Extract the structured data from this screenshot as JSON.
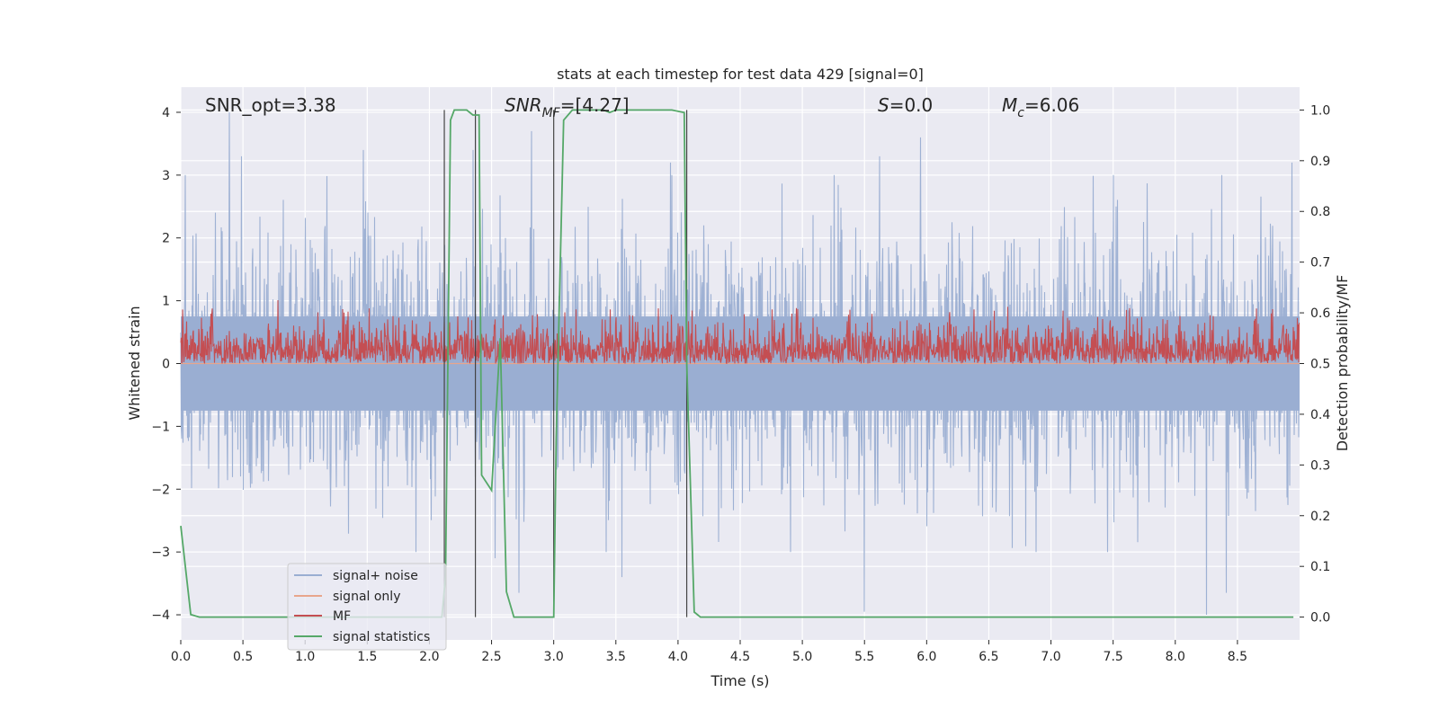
{
  "chart_data": {
    "type": "line",
    "title": "stats at each timestep for test data 429 [signal=0]",
    "xlabel": "Time (s)",
    "ylabel": "Whitened strain",
    "y2label": "Detection probability/MF",
    "xlim": [
      0.0,
      9.0
    ],
    "ylim": [
      -4.4,
      4.4
    ],
    "y2lim": [
      -0.045,
      1.045
    ],
    "xticks": [
      0.0,
      0.5,
      1.0,
      1.5,
      2.0,
      2.5,
      3.0,
      3.5,
      4.0,
      4.5,
      5.0,
      5.5,
      6.0,
      6.5,
      7.0,
      7.5,
      8.0,
      8.5
    ],
    "xtick_labels": [
      "0.0",
      "0.5",
      "1.0",
      "1.5",
      "2.0",
      "2.5",
      "3.0",
      "3.5",
      "4.0",
      "4.5",
      "5.0",
      "5.5",
      "6.0",
      "6.5",
      "7.0",
      "7.5",
      "8.0",
      "8.5"
    ],
    "yticks": [
      -4,
      -3,
      -2,
      -1,
      0,
      1,
      2,
      3,
      4
    ],
    "ytick_labels": [
      "−4",
      "−3",
      "−2",
      "−1",
      "0",
      "1",
      "2",
      "3",
      "4"
    ],
    "y2ticks": [
      0.0,
      0.1,
      0.2,
      0.3,
      0.4,
      0.5,
      0.6,
      0.7,
      0.8,
      0.9,
      1.0
    ],
    "y2tick_labels": [
      "0.0",
      "0.1",
      "0.2",
      "0.3",
      "0.4",
      "0.5",
      "0.6",
      "0.7",
      "0.8",
      "0.9",
      "1.0"
    ],
    "annotations": {
      "snr_opt": "SNR_opt=3.38",
      "snr_mf_main": "SNR",
      "snr_mf_sub": "MF",
      "snr_mf_rest": "=[4.27]",
      "s_main": "S",
      "s_rest": "=0.0",
      "mc_main": "M",
      "mc_sub": "c",
      "mc_rest": "=6.06"
    },
    "legend": {
      "position": "lower-left",
      "entries": [
        {
          "label": "signal+ noise",
          "color": "#9aaed2"
        },
        {
          "label": "signal only",
          "color": "#e8a58c"
        },
        {
          "label": "MF",
          "color": "#c44e52"
        },
        {
          "label": "signal statistics",
          "color": "#55a868"
        }
      ]
    },
    "vertical_markers_s": [
      2.12,
      2.37,
      3.0,
      4.07
    ],
    "series": [
      {
        "name": "signal+ noise",
        "axis": "left",
        "color": "#9aaed2",
        "kind": "noise",
        "t_range": [
          0.0,
          9.0
        ],
        "sigma": 1.0,
        "peaks": [
          {
            "t": 0.39,
            "v": 4.0
          },
          {
            "t": 0.49,
            "v": 3.3
          },
          {
            "t": 1.47,
            "v": 3.4
          },
          {
            "t": 2.35,
            "v": 3.4
          },
          {
            "t": 2.82,
            "v": 3.7
          },
          {
            "t": 3.94,
            "v": 3.2
          },
          {
            "t": 5.62,
            "v": 3.3
          },
          {
            "t": 5.95,
            "v": 3.6
          },
          {
            "t": 8.94,
            "v": 3.2
          },
          {
            "t": 2.72,
            "v": -3.65
          },
          {
            "t": 5.5,
            "v": -3.95
          },
          {
            "t": 8.25,
            "v": -4.0
          },
          {
            "t": 8.41,
            "v": -3.65
          },
          {
            "t": 3.55,
            "v": -3.4
          },
          {
            "t": 2.53,
            "v": -3.1
          }
        ]
      },
      {
        "name": "signal only",
        "axis": "left",
        "color": "#e8a58c",
        "kind": "line",
        "x": [
          0.0,
          9.0
        ],
        "values": [
          0.0,
          0.0
        ]
      },
      {
        "name": "MF",
        "axis": "right",
        "color": "#c44e52",
        "kind": "mf",
        "t_range": [
          0.0,
          9.0
        ],
        "base": 0.5,
        "peak_value": 0.58,
        "max_value": 0.625
      },
      {
        "name": "signal statistics",
        "axis": "right",
        "color": "#55a868",
        "kind": "line",
        "x": [
          0.0,
          0.08,
          0.15,
          2.0,
          2.1,
          2.13,
          2.17,
          2.2,
          2.3,
          2.35,
          2.4,
          2.42,
          2.5,
          2.57,
          2.62,
          2.68,
          3.0,
          3.02,
          3.08,
          3.15,
          3.4,
          3.45,
          3.5,
          3.95,
          4.05,
          4.07,
          4.13,
          4.18,
          4.3,
          8.95
        ],
        "values": [
          0.18,
          0.005,
          0.0,
          0.0,
          0.0,
          0.08,
          0.98,
          1.0,
          1.0,
          0.99,
          0.99,
          0.28,
          0.25,
          0.55,
          0.05,
          0.0,
          0.0,
          0.35,
          0.98,
          1.0,
          1.0,
          0.995,
          1.0,
          1.0,
          0.995,
          0.5,
          0.01,
          0.0,
          0.0,
          0.0
        ]
      }
    ]
  }
}
